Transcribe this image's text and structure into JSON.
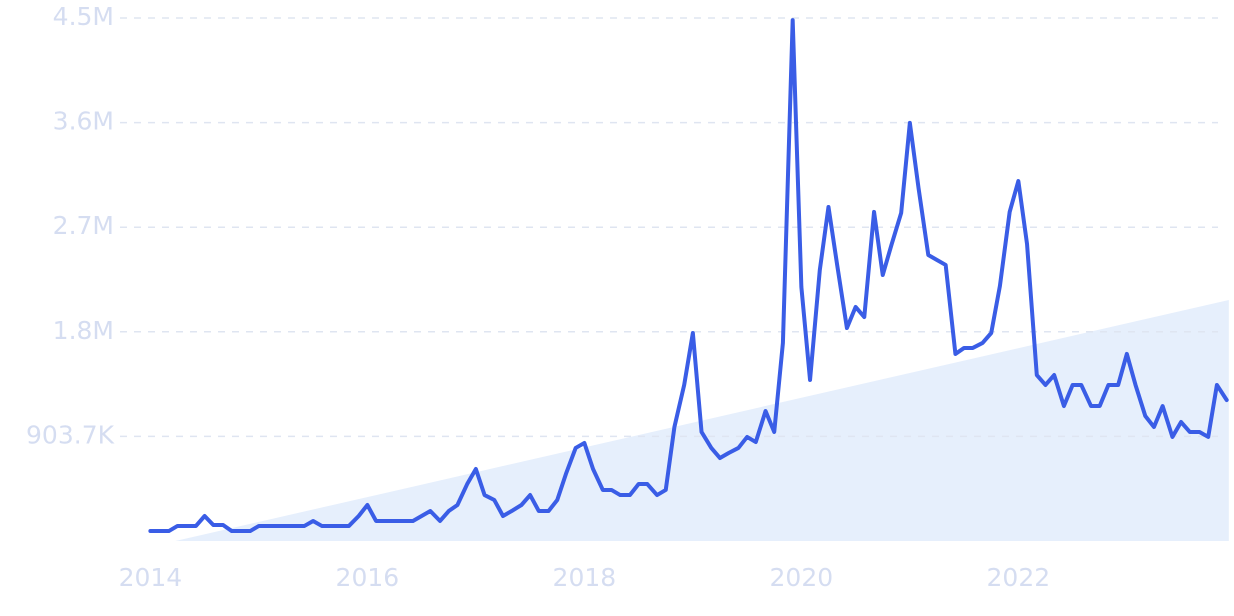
{
  "chart_data": {
    "type": "line",
    "x": [
      2014,
      2014.08,
      2014.17,
      2014.25,
      2014.33,
      2014.42,
      2014.5,
      2014.58,
      2014.67,
      2014.75,
      2014.83,
      2014.92,
      2015,
      2015.08,
      2015.17,
      2015.25,
      2015.33,
      2015.42,
      2015.5,
      2015.58,
      2015.67,
      2015.75,
      2015.83,
      2015.92,
      2016,
      2016.08,
      2016.17,
      2016.25,
      2016.33,
      2016.42,
      2016.5,
      2016.58,
      2016.67,
      2016.75,
      2016.83,
      2016.92,
      2017,
      2017.08,
      2017.17,
      2017.25,
      2017.33,
      2017.42,
      2017.5,
      2017.58,
      2017.67,
      2017.75,
      2017.83,
      2017.92,
      2018,
      2018.08,
      2018.17,
      2018.25,
      2018.33,
      2018.42,
      2018.5,
      2018.58,
      2018.67,
      2018.75,
      2018.83,
      2018.92,
      2019,
      2019.08,
      2019.17,
      2019.25,
      2019.33,
      2019.42,
      2019.5,
      2019.58,
      2019.67,
      2019.75,
      2019.83,
      2019.92,
      2020,
      2020.08,
      2020.17,
      2020.25,
      2020.33,
      2020.42,
      2020.5,
      2020.58,
      2020.67,
      2020.75,
      2020.83,
      2020.92,
      2021,
      2021.08,
      2021.17,
      2021.25,
      2021.33,
      2021.42,
      2021.5,
      2021.58,
      2021.67,
      2021.75,
      2021.83,
      2021.92,
      2022,
      2022.08,
      2022.17,
      2022.25,
      2022.33,
      2022.42,
      2022.5,
      2022.58,
      2022.67,
      2022.75,
      2022.83,
      2022.92,
      2023,
      2023.08,
      2023.17,
      2023.25,
      2023.33,
      2023.42,
      2023.5,
      2023.58,
      2023.67,
      2023.75,
      2023.83,
      2023.92
    ],
    "series": [
      {
        "color": "#3a5de6",
        "values": [
          86000,
          86000,
          86000,
          130000,
          130000,
          130000,
          216000,
          138000,
          138000,
          86000,
          86000,
          86000,
          130000,
          130000,
          130000,
          130000,
          130000,
          130000,
          173000,
          130000,
          130000,
          130000,
          130000,
          216000,
          311000,
          173000,
          173000,
          173000,
          173000,
          173000,
          216000,
          259000,
          173000,
          259000,
          311000,
          492000,
          622000,
          397000,
          354000,
          216000,
          259000,
          311000,
          397000,
          259000,
          259000,
          354000,
          579000,
          804000,
          847000,
          622000,
          441000,
          441000,
          397000,
          397000,
          492000,
          492000,
          397000,
          441000,
          985000,
          1348000,
          1797000,
          942000,
          804000,
          717000,
          760000,
          804000,
          899000,
          855000,
          1123000,
          942000,
          1711000,
          4500000,
          2195000,
          1391000,
          2341000,
          2886000,
          2385000,
          1840000,
          2022000,
          1935000,
          2843000,
          2298000,
          2557000,
          2834000,
          3612000,
          3050000,
          2471000,
          2428000,
          2385000,
          1616000,
          1668000,
          1668000,
          1711000,
          1797000,
          2203000,
          2843000,
          3110000,
          2566000,
          1434000,
          1348000,
          1434000,
          1166000,
          1348000,
          1348000,
          1166000,
          1166000,
          1348000,
          1348000,
          1616000,
          1348000,
          1080000,
          985000,
          1166000,
          899000,
          1028000,
          942000,
          942000,
          899000,
          1348000,
          1218000
        ]
      }
    ],
    "trend": {
      "color": "#e6effc",
      "x": [
        2014.23,
        2023.94
      ],
      "values": [
        0,
        2082000
      ]
    },
    "xlim": [
      2013.72,
      2023.96
    ],
    "xticks": [
      2014,
      2016,
      2018,
      2020,
      2022
    ],
    "ylim": [
      0,
      4518500
    ],
    "yticks": [
      {
        "value": 903700,
        "label": "903.7K"
      },
      {
        "value": 1807400,
        "label": "1.8M"
      },
      {
        "value": 2711100,
        "label": "2.7M"
      },
      {
        "value": 3614800,
        "label": "3.6M"
      },
      {
        "value": 4518500,
        "label": "4.5M"
      }
    ],
    "grid": true
  }
}
